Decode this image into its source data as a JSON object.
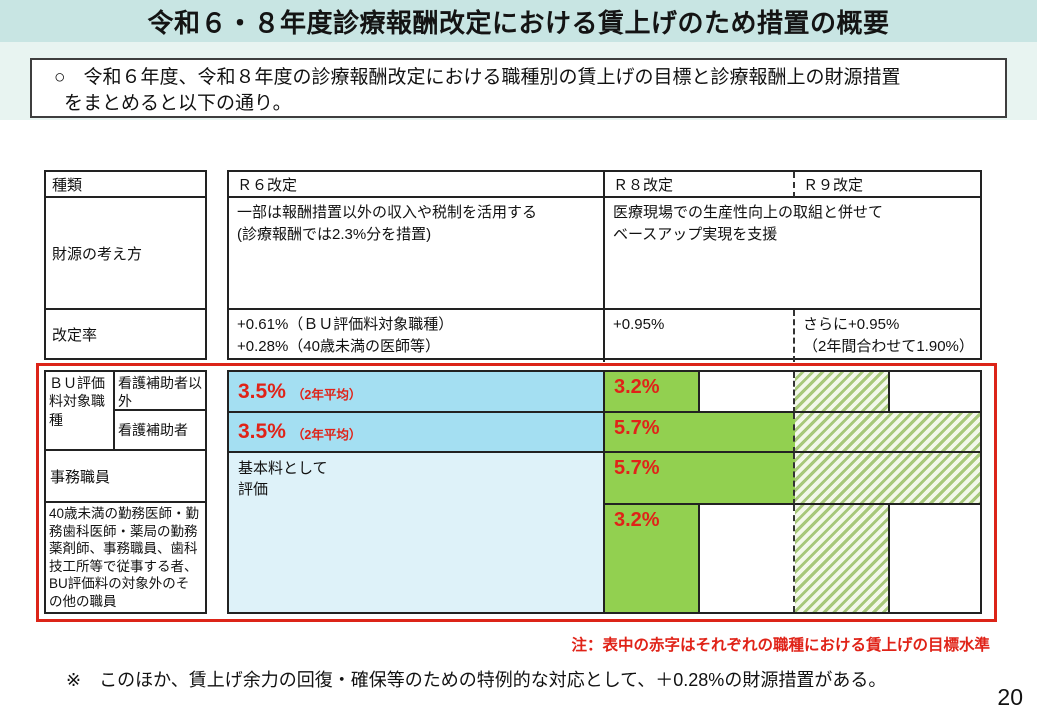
{
  "header": {
    "title": "令和６・８年度診療報酬改定における賃上げのため措置の概要"
  },
  "intro": {
    "bullet": "○",
    "line1": "令和６年度、令和８年度の診療報酬改定における職種別の賃上げの目標と診療報酬上の財源措置",
    "line2": "をまとめると以下の通り。"
  },
  "table": {
    "col_headers": {
      "kind": "種類",
      "r6": "Ｒ６改定",
      "r8": "Ｒ８改定",
      "r9": "Ｒ９改定"
    },
    "funding_row": {
      "label": "財源の考え方",
      "r6": "一部は報酬措置以外の収入や税制を活用する\n(診療報酬では2.3%分を措置)",
      "r8r9": "医療現場での生産性向上の取組と併せて\nベースアップ実現を支援"
    },
    "rate_row": {
      "label": "改定率",
      "r6": "+0.61%（ＢＵ評価料対象職種）\n+0.28%（40歳未満の医師等）",
      "r8": "+0.95%",
      "r9": "さらに+0.95%\n（2年間合わせて1.90%）"
    }
  },
  "wage_section": {
    "labels": {
      "bu_group": "ＢＵ評価料対象職種",
      "non_nursing_assistant": "看護補助者以外",
      "nursing_assistant": "看護補助者",
      "clerical_staff": "事務職員",
      "other_staff": "40歳未満の勤務医師・勤務歯科医師・薬局の勤務薬剤師、事務職員、歯科技工所等で従事する者、BU評価料の対象外のその他の職員"
    },
    "cells": {
      "row1_r6_value": "3.5%",
      "row1_r6_note": "（2年平均）",
      "row1_r8_value": "3.2%",
      "row2_r6_value": "3.5%",
      "row2_r6_note": "（2年平均）",
      "row2_r8_value": "5.7%",
      "row34_r6_text": "基本料として\n評価",
      "row3_r8_value": "5.7%",
      "row4_r8_value": "3.2%"
    }
  },
  "notes": {
    "red_note": "注：表中の赤字はそれぞれの職種における賃上げの目標水準",
    "footnote": "※　このほか、賃上げ余力の回復・確保等のための特例的な対応として、＋0.28%の財源措置がある。",
    "page_number": "20"
  },
  "colors": {
    "title_bar_bg": "#c8e5e3",
    "band_bg": "#e8f4f1",
    "sky_blue": "#a4dff2",
    "pale_blue": "#def2f9",
    "green": "#92d050",
    "hatch_stripe": "#a7c87a",
    "hatch_bg": "#f3f8ea",
    "red_text": "#e02318",
    "red_border": "#dc2418"
  }
}
